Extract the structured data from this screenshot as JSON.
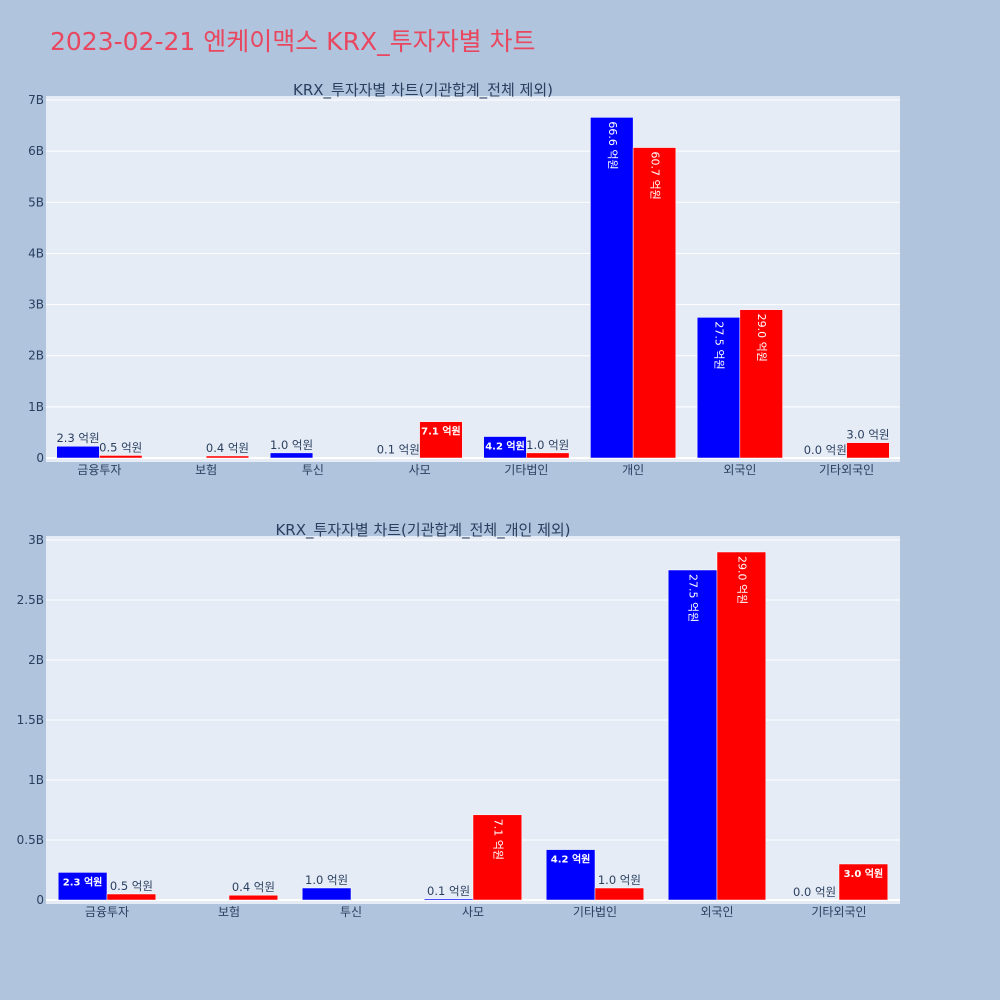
{
  "title": "2023-02-21 엔케이맥스 KRX_투자자별 차트",
  "colors": {
    "buy": "#0000ff",
    "sell": "#ff0000",
    "plot_bg": "#e5ecf6",
    "page_bg": "#b0c4de",
    "title": "#e8475f"
  },
  "chart_data": [
    {
      "type": "bar",
      "title": "KRX_투자자별 차트(기관합계_전체 제외)",
      "categories": [
        "금융투자",
        "보험",
        "투신",
        "사모",
        "기타법인",
        "개인",
        "외국인",
        "기타외국인"
      ],
      "series": [
        {
          "values": [
            230000000,
            0,
            100000000,
            10000000,
            420000000,
            6660000000,
            2750000000,
            0
          ],
          "labels": [
            "2.3 억원",
            "",
            "1.0 억원",
            "0.1 억원",
            "4.2 억원",
            "66.6 억원",
            "27.5 억원",
            "0.0 억원"
          ]
        },
        {
          "values": [
            50000000,
            40000000,
            0,
            710000000,
            100000000,
            6070000000,
            2900000000,
            300000000
          ],
          "labels": [
            "0.5 억원",
            "0.4 억원",
            "",
            "7.1 억원",
            "1.0 억원",
            "60.7 억원",
            "29.0 억원",
            "3.0 억원"
          ]
        }
      ],
      "ylim": [
        0,
        7000000000
      ],
      "yticks": [
        0,
        1000000000,
        2000000000,
        3000000000,
        4000000000,
        5000000000,
        6000000000,
        7000000000
      ],
      "ytick_labels": [
        "0",
        "1B",
        "2B",
        "3B",
        "4B",
        "5B",
        "6B",
        "7B"
      ],
      "grid": true
    },
    {
      "type": "bar",
      "title": "KRX_투자자별 차트(기관합계_전체_개인 제외)",
      "categories": [
        "금융투자",
        "보험",
        "투신",
        "사모",
        "기타법인",
        "외국인",
        "기타외국인"
      ],
      "series": [
        {
          "values": [
            230000000,
            0,
            100000000,
            10000000,
            420000000,
            2750000000,
            0
          ],
          "labels": [
            "2.3 억원",
            "",
            "1.0 억원",
            "0.1 억원",
            "4.2 억원",
            "27.5 억원",
            "0.0 억원"
          ]
        },
        {
          "values": [
            50000000,
            40000000,
            0,
            710000000,
            100000000,
            2900000000,
            300000000
          ],
          "labels": [
            "0.5 억원",
            "0.4 억원",
            "",
            "7.1 억원",
            "1.0 억원",
            "29.0 억원",
            "3.0 억원"
          ]
        }
      ],
      "ylim": [
        0,
        3000000000
      ],
      "yticks": [
        0,
        500000000,
        1000000000,
        1500000000,
        2000000000,
        2500000000,
        3000000000
      ],
      "ytick_labels": [
        "0",
        "0.5B",
        "1B",
        "1.5B",
        "2B",
        "2.5B",
        "3B"
      ],
      "grid": true
    }
  ]
}
